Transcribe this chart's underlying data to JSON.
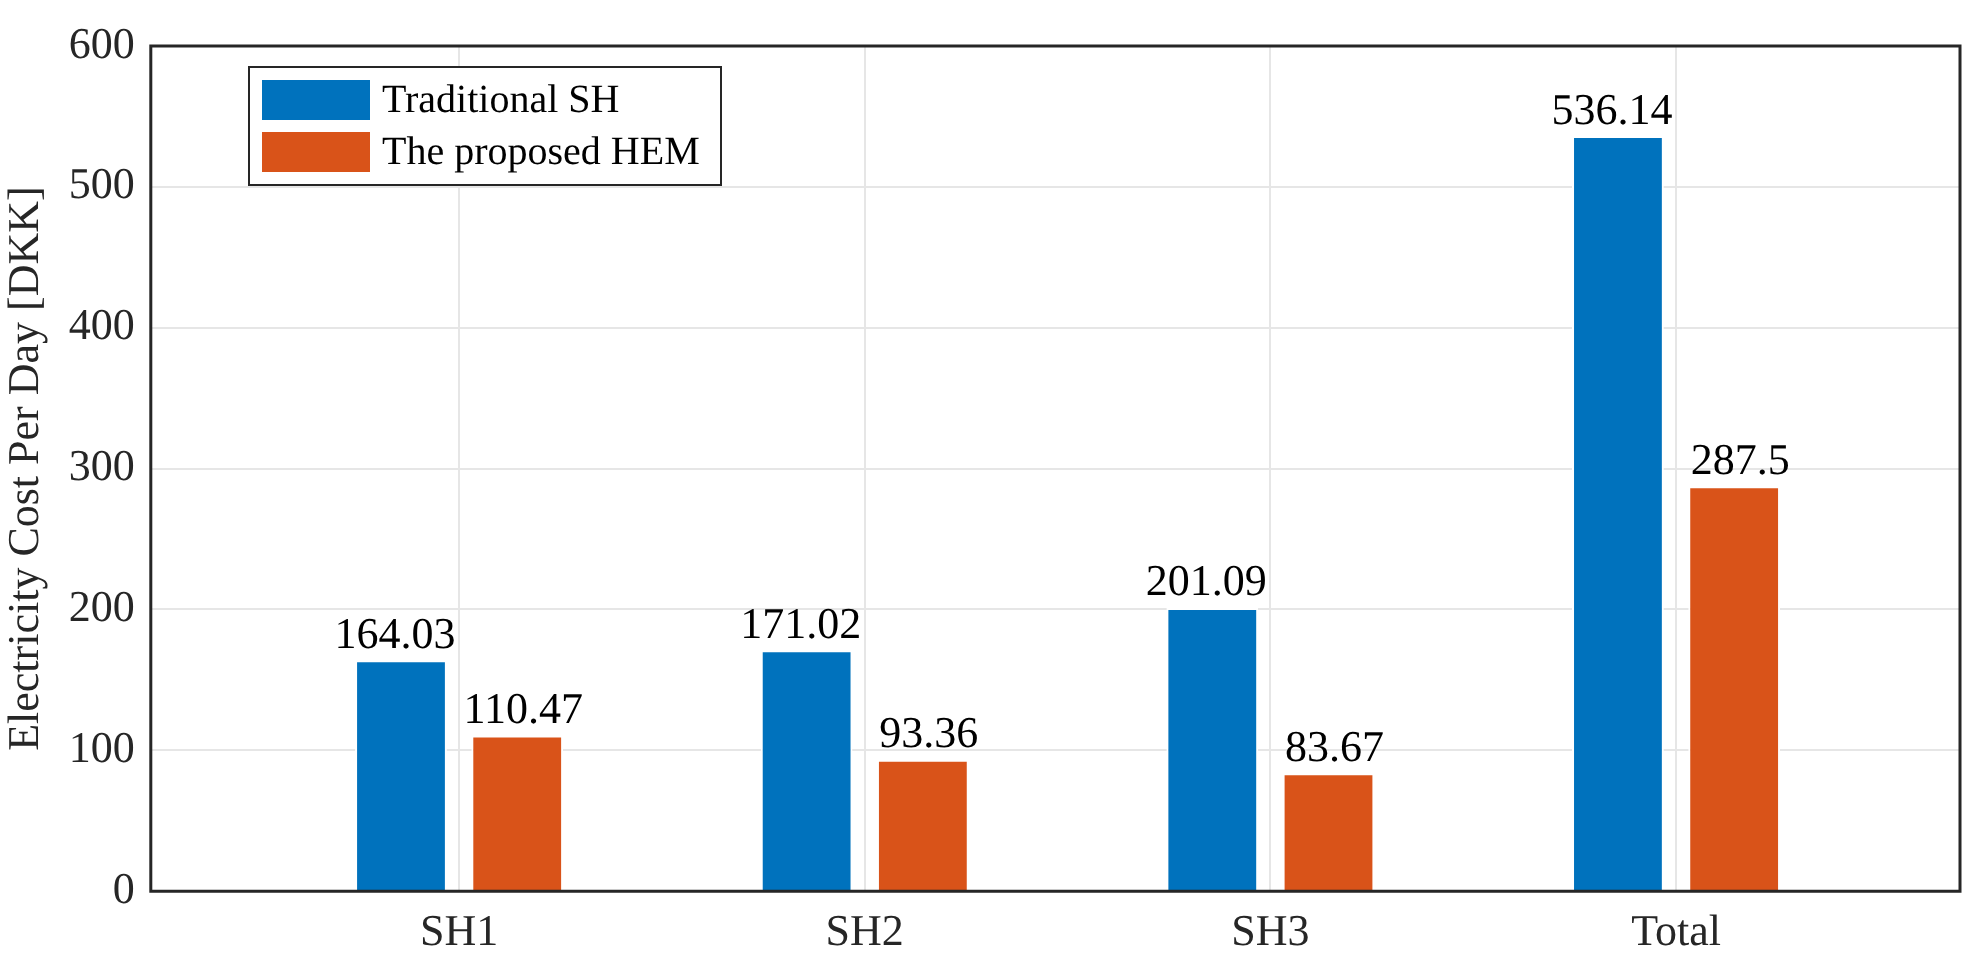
{
  "chart_data": {
    "type": "bar",
    "ylabel": "Electricity Cost Per Day [DKK]",
    "categories": [
      "SH1",
      "SH2",
      "SH3",
      "Total"
    ],
    "series": [
      {
        "name": "Traditional SH",
        "color": "#0072bd",
        "values": [
          164.03,
          171.02,
          201.09,
          536.14
        ]
      },
      {
        "name": "The proposed HEM",
        "color": "#d95319",
        "values": [
          110.47,
          93.36,
          83.67,
          287.5
        ]
      }
    ],
    "ylim": [
      0,
      600
    ],
    "yticks": [
      0,
      100,
      200,
      300,
      400,
      500,
      600
    ],
    "grid": true,
    "legend": "top left",
    "data_labels": true
  }
}
